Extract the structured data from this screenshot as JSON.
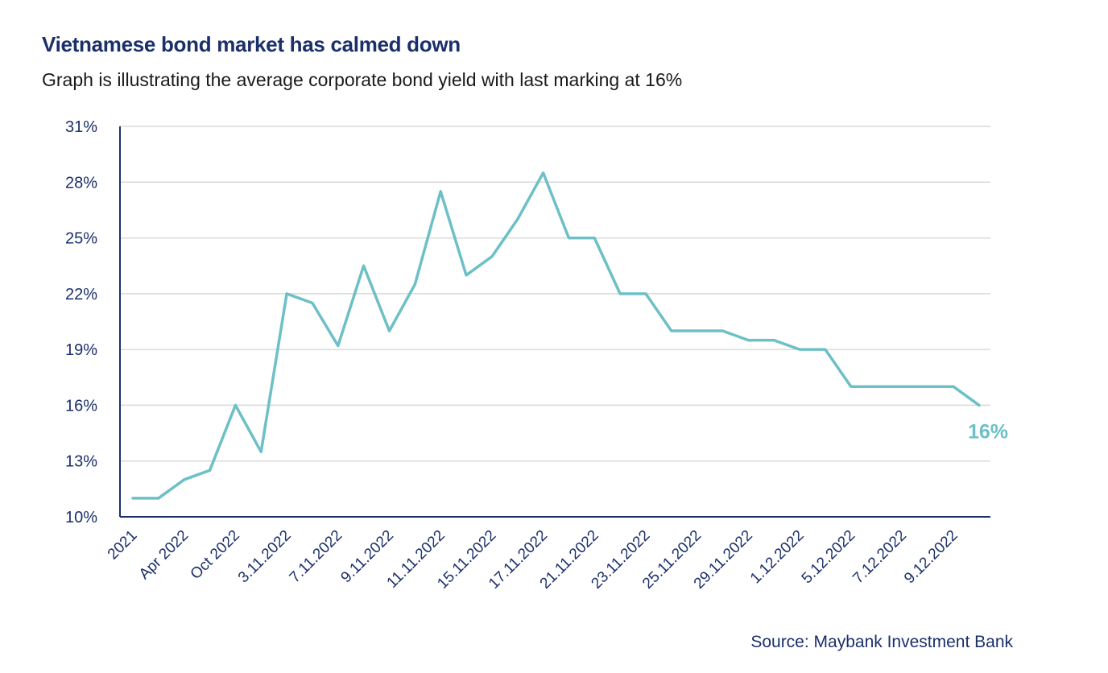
{
  "header": {
    "title": "Vietnamese bond market has calmed down",
    "subtitle": "Graph is illustrating the average corporate bond yield with last marking at 16%"
  },
  "footer": {
    "source": "Source: Maybank Investment Bank"
  },
  "colors": {
    "line": "#6cc0c6",
    "axis": "#1b2f6b",
    "grid": "#d9d9d9",
    "text": "#1b2f6b"
  },
  "chart_data": {
    "type": "line",
    "title": "Vietnamese bond market has calmed down",
    "xlabel": "",
    "ylabel": "",
    "ylim": [
      10,
      31
    ],
    "yticks": [
      10,
      13,
      16,
      19,
      22,
      25,
      28,
      31
    ],
    "ytick_labels": [
      "10%",
      "13%",
      "16%",
      "19%",
      "22%",
      "25%",
      "28%",
      "31%"
    ],
    "xtick_labels": [
      "2021",
      "Apr 2022",
      "Oct 2022",
      "3.11.2022",
      "7.11.2022",
      "9.11.2022",
      "11.11.2022",
      "15.11.2022",
      "17.11.2022",
      "21.11.2022",
      "23.11.2022",
      "25.11.2022",
      "29.11.2022",
      "1.12.2022",
      "5.12.2022",
      "7.12.2022",
      "9.12.2022"
    ],
    "series": [
      {
        "name": "Average corporate bond yield (%)",
        "values": [
          11,
          11,
          12,
          12.5,
          16,
          13.5,
          22,
          21.5,
          19.2,
          23.5,
          20,
          22.5,
          27.5,
          23,
          24,
          26,
          28.5,
          25,
          25,
          22,
          22,
          20,
          20,
          20,
          19.5,
          19.5,
          19,
          19,
          17,
          17,
          17,
          17,
          17,
          16
        ]
      }
    ],
    "grid": true,
    "annotation": "16%"
  }
}
